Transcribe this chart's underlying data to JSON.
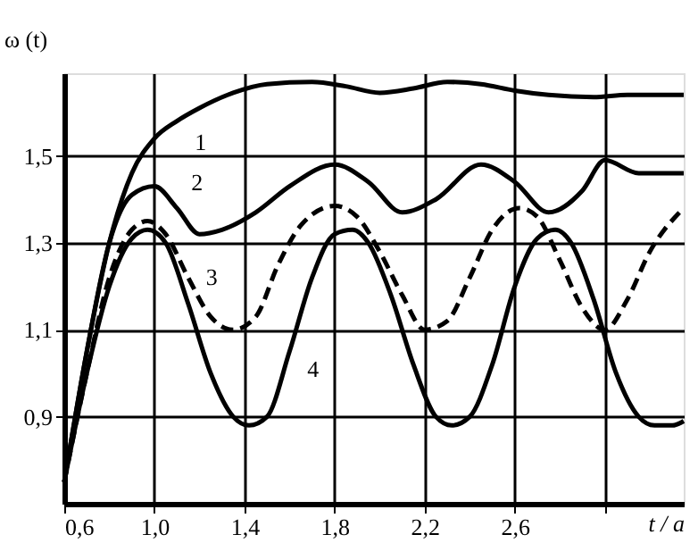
{
  "chart_data": {
    "type": "line",
    "xlabel": "t / a",
    "ylabel": "ω (t)",
    "xlim": [
      0.6,
      3.35
    ],
    "ylim": [
      0.7,
      1.69
    ],
    "xticks": [
      {
        "value": 0.6,
        "label": "0,6"
      },
      {
        "value": 1.0,
        "label": "1,0"
      },
      {
        "value": 1.4,
        "label": "1,4"
      },
      {
        "value": 1.8,
        "label": "1,8"
      },
      {
        "value": 2.2,
        "label": "2,2"
      },
      {
        "value": 2.6,
        "label": "2,6"
      },
      {
        "value": 3.0,
        "label": null
      }
    ],
    "yticks": [
      {
        "value": 0.9,
        "label": "0,9"
      },
      {
        "value": 1.1,
        "label": "1,1"
      },
      {
        "value": 1.3,
        "label": "1,3"
      },
      {
        "value": 1.5,
        "label": "1,5"
      }
    ],
    "grid": true,
    "marker": "none",
    "series": [
      {
        "color": "#000000",
        "line_style": "solid",
        "x": [
          0.6,
          0.7,
          0.8,
          0.9,
          1.0,
          1.1,
          1.2,
          1.35,
          1.5,
          1.7,
          1.85,
          2.0,
          2.15,
          2.3,
          2.45,
          2.6,
          2.75,
          2.95,
          3.1,
          3.25,
          3.35
        ],
        "values": [
          0.75,
          1.05,
          1.3,
          1.46,
          1.54,
          1.58,
          1.61,
          1.645,
          1.665,
          1.67,
          1.66,
          1.645,
          1.655,
          1.67,
          1.665,
          1.65,
          1.64,
          1.635,
          1.64,
          1.64,
          1.64
        ]
      },
      {
        "color": "#000000",
        "line_style": "solid",
        "x": [
          0.6,
          0.7,
          0.8,
          0.9,
          1.0,
          1.1,
          1.2,
          1.3,
          1.45,
          1.6,
          1.8,
          1.95,
          2.1,
          2.25,
          2.45,
          2.6,
          2.75,
          2.9,
          3.0,
          3.15,
          3.35
        ],
        "values": [
          0.75,
          1.05,
          1.3,
          1.41,
          1.43,
          1.38,
          1.32,
          1.33,
          1.37,
          1.43,
          1.48,
          1.44,
          1.37,
          1.4,
          1.48,
          1.44,
          1.37,
          1.42,
          1.49,
          1.46,
          1.46
        ]
      },
      {
        "color": "#000000",
        "line_style": "dashed",
        "x": [
          0.6,
          0.7,
          0.8,
          0.9,
          0.97,
          1.05,
          1.15,
          1.25,
          1.35,
          1.45,
          1.55,
          1.65,
          1.8,
          1.9,
          2.0,
          2.1,
          2.2,
          2.3,
          2.4,
          2.5,
          2.62,
          2.7,
          2.8,
          2.9,
          3.0,
          3.1,
          3.2,
          3.35
        ],
        "values": [
          0.75,
          1.0,
          1.22,
          1.33,
          1.35,
          1.32,
          1.22,
          1.13,
          1.1,
          1.13,
          1.25,
          1.34,
          1.385,
          1.36,
          1.28,
          1.18,
          1.1,
          1.12,
          1.22,
          1.33,
          1.38,
          1.36,
          1.26,
          1.15,
          1.1,
          1.17,
          1.28,
          1.38
        ]
      },
      {
        "color": "#000000",
        "line_style": "solid",
        "x": [
          0.6,
          0.7,
          0.8,
          0.9,
          0.97,
          1.05,
          1.15,
          1.25,
          1.35,
          1.42,
          1.5,
          1.6,
          1.7,
          1.8,
          1.88,
          1.95,
          2.05,
          2.15,
          2.25,
          2.32,
          2.4,
          2.5,
          2.6,
          2.7,
          2.78,
          2.85,
          2.95,
          3.05,
          3.15,
          3.22,
          3.3,
          3.35
        ],
        "values": [
          0.75,
          1.0,
          1.2,
          1.31,
          1.33,
          1.3,
          1.16,
          1.0,
          0.9,
          0.88,
          0.9,
          1.05,
          1.22,
          1.32,
          1.33,
          1.3,
          1.18,
          1.02,
          0.9,
          0.88,
          0.9,
          1.02,
          1.2,
          1.31,
          1.33,
          1.3,
          1.17,
          1.0,
          0.9,
          0.88,
          0.88,
          0.89
        ]
      }
    ],
    "annotations": [
      {
        "text": "1",
        "x": 1.1,
        "y": 1.58
      },
      {
        "text": "2",
        "x": 1.1,
        "y": 1.38
      },
      {
        "text": "3",
        "x": 1.15,
        "y": 1.22
      },
      {
        "text": "4",
        "x": 1.6,
        "y": 1.05
      }
    ]
  }
}
